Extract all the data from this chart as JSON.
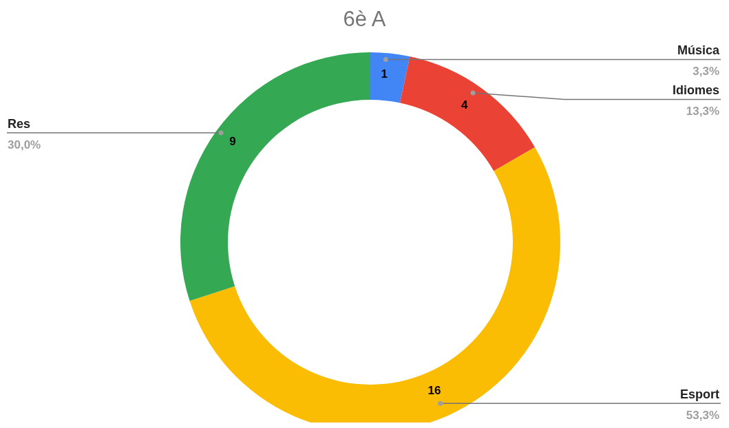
{
  "chart_data": {
    "type": "donut",
    "title": "6è A",
    "categories": [
      "Música",
      "Idiomes",
      "Esport",
      "Res"
    ],
    "values": [
      1,
      4,
      16,
      9
    ],
    "colors": [
      "#4285f4",
      "#ea4335",
      "#fbbc04",
      "#34a853"
    ],
    "annotations": [
      {
        "text": "3,3%",
        "x": "Música"
      },
      {
        "text": "13,3%",
        "x": "Idiomes"
      },
      {
        "text": "53,3%",
        "x": "Esport"
      },
      {
        "text": "30,0%",
        "x": "Res"
      }
    ],
    "data_labels": true,
    "legend": false
  }
}
